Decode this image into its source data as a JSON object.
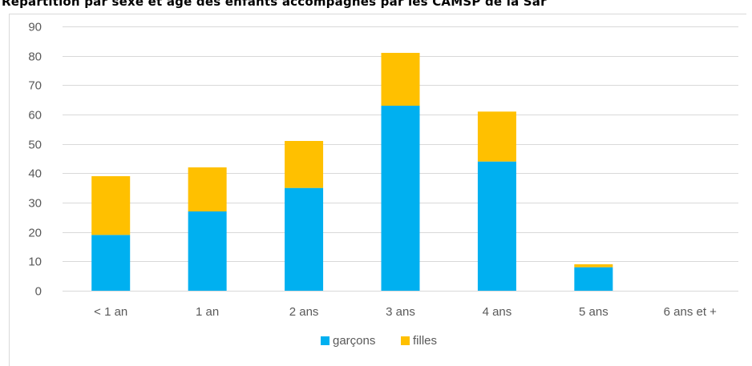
{
  "colors": {
    "garcons": "#00b0f0",
    "filles": "#ffc000",
    "grid": "#d9d9d9",
    "text": "#595959"
  },
  "chart_data": {
    "type": "bar",
    "stacked": true,
    "title": "Répartition par sexe et âge des enfants accompagnés par les CAMSP de la Sar",
    "xlabel": "",
    "ylabel": "",
    "ylim": [
      0,
      90
    ],
    "yticks": [
      0,
      10,
      20,
      30,
      40,
      50,
      60,
      70,
      80,
      90
    ],
    "grid": true,
    "legend_position": "bottom",
    "categories": [
      "< 1 an",
      "1 an",
      "2 ans",
      "3 ans",
      "4 ans",
      "5 ans",
      "6 ans et +"
    ],
    "series": [
      {
        "name": "garçons",
        "values": [
          19,
          27,
          35,
          63,
          44,
          8,
          0
        ]
      },
      {
        "name": "filles",
        "values": [
          20,
          15,
          16,
          18,
          17,
          1,
          0
        ]
      }
    ]
  }
}
